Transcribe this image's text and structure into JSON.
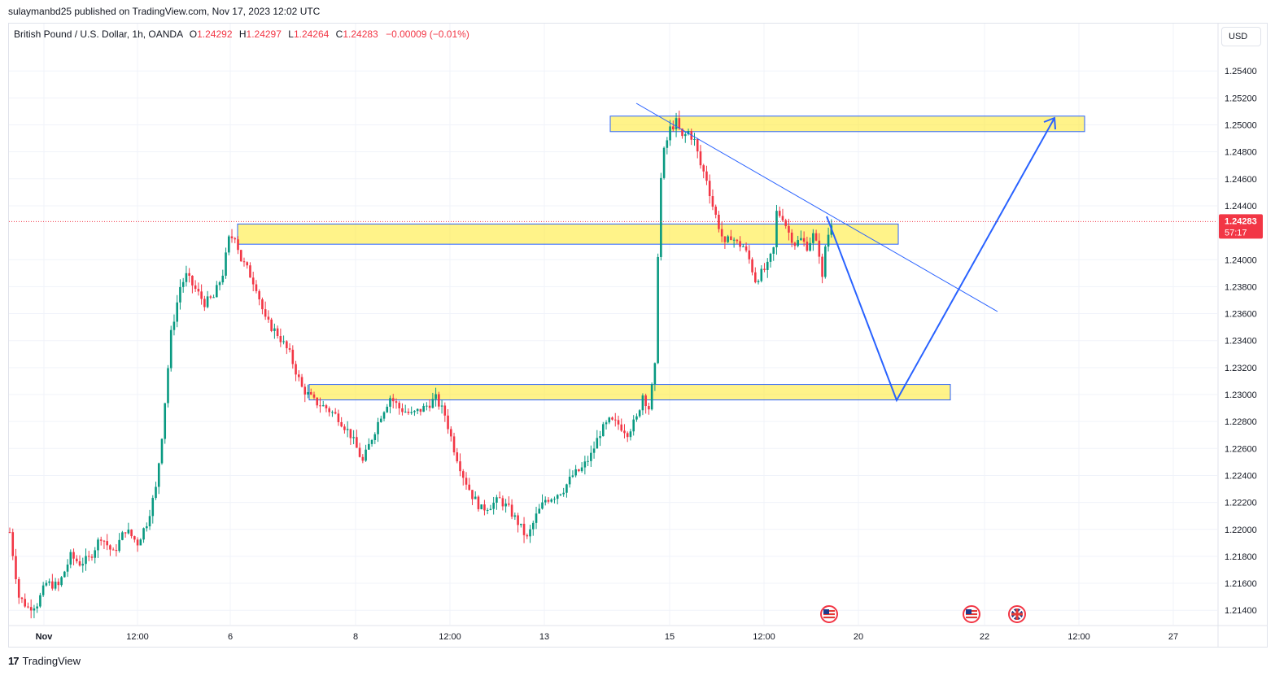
{
  "header": {
    "published_text": "sulaymanbd25 published on TradingView.com, Nov 17, 2023 12:02 UTC"
  },
  "legend": {
    "symbol": "British Pound / U.S. Dollar, 1h, OANDA",
    "open_label": "O",
    "open": "1.24292",
    "high_label": "H",
    "high": "1.24297",
    "low_label": "L",
    "low": "1.24264",
    "close_label": "C",
    "close": "1.24283",
    "change": "−0.00009 (−0.01%)"
  },
  "toolbar": {
    "currency": "USD"
  },
  "footer": {
    "brand": "TradingView",
    "brand_mark": "17"
  },
  "price_label": {
    "price": "1.24283",
    "countdown": "57:17"
  },
  "colors": {
    "up": "#089981",
    "down": "#f23645",
    "zone_fill": "#ffeb3b",
    "zone_border": "#2962ff",
    "drawing": "#2962ff",
    "grid": "#f0f3fa",
    "price_line": "#f23645"
  },
  "chart_data": {
    "type": "candlestick",
    "title": "British Pound / U.S. Dollar, 1h, OANDA",
    "ylim": [
      1.2128,
      1.2578
    ],
    "y_ticks": [
      "1.25400",
      "1.25200",
      "1.25000",
      "1.24800",
      "1.24600",
      "1.24400",
      "1.24000",
      "1.23800",
      "1.23600",
      "1.23400",
      "1.23200",
      "1.23000",
      "1.22800",
      "1.22600",
      "1.22400",
      "1.22200",
      "1.22000",
      "1.21800",
      "1.21600",
      "1.21400"
    ],
    "x_ticks": [
      "Nov",
      "12:00",
      "6",
      "8",
      "12:00",
      "13",
      "15",
      "12:00",
      "20",
      "22",
      "12:00",
      "27"
    ],
    "grid": true,
    "last_price": 1.24283,
    "price_path": [
      [
        0,
        1.2198
      ],
      [
        3,
        1.215
      ],
      [
        6,
        1.2142
      ],
      [
        9,
        1.2145
      ],
      [
        12,
        1.216
      ],
      [
        16,
        1.2158
      ],
      [
        20,
        1.218
      ],
      [
        23,
        1.2175
      ],
      [
        26,
        1.2178
      ],
      [
        30,
        1.2195
      ],
      [
        34,
        1.2182
      ],
      [
        38,
        1.22
      ],
      [
        42,
        1.219
      ],
      [
        45,
        1.2205
      ],
      [
        48,
        1.223
      ],
      [
        50,
        1.227
      ],
      [
        53,
        1.2345
      ],
      [
        56,
        1.238
      ],
      [
        58,
        1.2388
      ],
      [
        61,
        1.2378
      ],
      [
        64,
        1.2368
      ],
      [
        67,
        1.2372
      ],
      [
        70,
        1.239
      ],
      [
        72,
        1.2415
      ],
      [
        74,
        1.2418
      ],
      [
        76,
        1.24
      ],
      [
        78,
        1.2393
      ],
      [
        81,
        1.238
      ],
      [
        84,
        1.2355
      ],
      [
        88,
        1.2345
      ],
      [
        92,
        1.233
      ],
      [
        96,
        1.2305
      ],
      [
        100,
        1.2295
      ],
      [
        104,
        1.229
      ],
      [
        108,
        1.2283
      ],
      [
        112,
        1.227
      ],
      [
        116,
        1.225
      ],
      [
        119,
        1.2268
      ],
      [
        122,
        1.2285
      ],
      [
        125,
        1.2298
      ],
      [
        128,
        1.229
      ],
      [
        132,
        1.2285
      ],
      [
        136,
        1.229
      ],
      [
        140,
        1.2297
      ],
      [
        143,
        1.2285
      ],
      [
        146,
        1.226
      ],
      [
        149,
        1.224
      ],
      [
        152,
        1.2225
      ],
      [
        155,
        1.2215
      ],
      [
        158,
        1.2218
      ],
      [
        161,
        1.2222
      ],
      [
        164,
        1.2215
      ],
      [
        167,
        1.2205
      ],
      [
        170,
        1.2193
      ],
      [
        173,
        1.221
      ],
      [
        176,
        1.2222
      ],
      [
        179,
        1.2225
      ],
      [
        182,
        1.223
      ],
      [
        185,
        1.224
      ],
      [
        188,
        1.2245
      ],
      [
        191,
        1.2255
      ],
      [
        194,
        1.2272
      ],
      [
        197,
        1.228
      ],
      [
        200,
        1.2278
      ],
      [
        203,
        1.2272
      ],
      [
        206,
        1.2282
      ],
      [
        208,
        1.23
      ],
      [
        210,
        1.229
      ],
      [
        212,
        1.232
      ],
      [
        213,
        1.2405
      ],
      [
        214,
        1.246
      ],
      [
        215,
        1.248
      ],
      [
        217,
        1.2497
      ],
      [
        219,
        1.2502
      ],
      [
        221,
        1.249
      ],
      [
        223,
        1.2495
      ],
      [
        225,
        1.2488
      ],
      [
        227,
        1.247
      ],
      [
        229,
        1.246
      ],
      [
        231,
        1.244
      ],
      [
        233,
        1.2425
      ],
      [
        235,
        1.241
      ],
      [
        237,
        1.2418
      ],
      [
        239,
        1.2412
      ],
      [
        241,
        1.241
      ],
      [
        243,
        1.24
      ],
      [
        245,
        1.2385
      ],
      [
        247,
        1.239
      ],
      [
        249,
        1.2395
      ],
      [
        251,
        1.2408
      ],
      [
        252,
        1.2435
      ],
      [
        254,
        1.2432
      ],
      [
        256,
        1.242
      ],
      [
        258,
        1.2412
      ],
      [
        260,
        1.2415
      ],
      [
        262,
        1.241
      ],
      [
        264,
        1.2418
      ],
      [
        266,
        1.2405
      ],
      [
        267,
        1.2385
      ],
      [
        268,
        1.241
      ],
      [
        270,
        1.2428
      ]
    ],
    "zones": [
      {
        "from": 1.2495,
        "to": 1.25065
      },
      {
        "from": 1.24115,
        "to": 1.24265
      },
      {
        "from": 1.2296,
        "to": 1.23075
      }
    ],
    "trendline": {
      "from": [
        208,
        1.2517
      ],
      "to": [
        325,
        1.2362
      ]
    },
    "projection_path": [
      [
        270,
        1.24283
      ],
      [
        290,
        1.2296
      ],
      [
        325,
        1.2505
      ]
    ],
    "events": [
      "us-flag",
      "us-flag",
      "uk-flag"
    ]
  }
}
